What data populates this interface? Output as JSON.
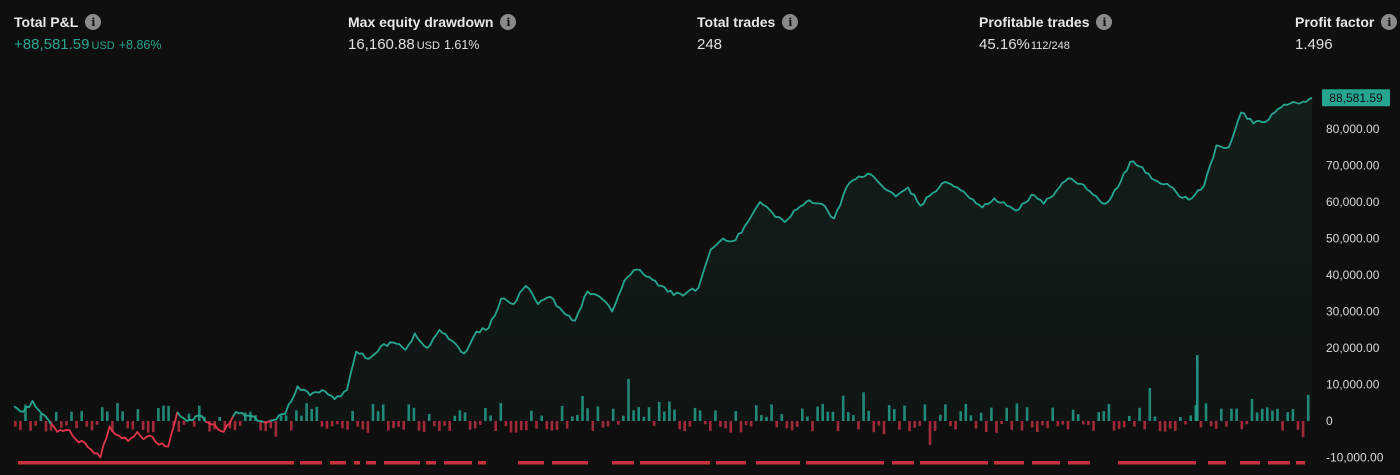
{
  "stats": {
    "total_pnl": {
      "label": "Total P&L",
      "value": "+88,581.59",
      "unit": "USD",
      "percent": "+8.86%"
    },
    "max_drawdown": {
      "label": "Max equity drawdown",
      "value": "16,160.88",
      "unit": "USD",
      "percent": "1.61%"
    },
    "total_trades": {
      "label": "Total trades",
      "value": "248"
    },
    "profitable_trades": {
      "label": "Profitable trades",
      "value": "45.16%",
      "ratio": "112/248"
    },
    "profit_factor": {
      "label": "Profit factor",
      "value": "1.496"
    }
  },
  "colors": {
    "positive": "#26a690",
    "negative": "#e0364c",
    "background": "#0f0f0f",
    "label_badge": "#26a690"
  },
  "chart_data": {
    "type": "line",
    "series_label": "88,581.59",
    "ylim": [
      -10000,
      90000
    ],
    "y_ticks": [
      "80,000.00",
      "70,000.00",
      "60,000.00",
      "50,000.00",
      "40,000.00",
      "30,000.00",
      "20,000.00",
      "10,000.00",
      "0",
      "-10,000.00"
    ],
    "y_tick_values": [
      80000,
      70000,
      60000,
      50000,
      40000,
      30000,
      20000,
      10000,
      0,
      -10000
    ],
    "equity_keypoints": [
      [
        0,
        4000
      ],
      [
        3,
        2500
      ],
      [
        6,
        5500
      ],
      [
        10,
        1500
      ],
      [
        14,
        -3000
      ],
      [
        18,
        -2500
      ],
      [
        20,
        -5000
      ],
      [
        23,
        -6000
      ],
      [
        28,
        -10000
      ],
      [
        31,
        -1500
      ],
      [
        34,
        -4000
      ],
      [
        37,
        -5500
      ],
      [
        40,
        -3000
      ],
      [
        42,
        -5000
      ],
      [
        44,
        -4000
      ],
      [
        47,
        -6500
      ],
      [
        50,
        -7000
      ],
      [
        53,
        2500
      ],
      [
        56,
        0
      ],
      [
        60,
        1500
      ],
      [
        63,
        -500
      ],
      [
        68,
        -3000
      ],
      [
        72,
        2500
      ],
      [
        76,
        1500
      ],
      [
        80,
        0
      ],
      [
        84,
        200
      ],
      [
        88,
        2000
      ],
      [
        92,
        9500
      ],
      [
        96,
        7000
      ],
      [
        100,
        8500
      ],
      [
        104,
        6000
      ],
      [
        108,
        8500
      ],
      [
        111,
        19000
      ],
      [
        115,
        17000
      ],
      [
        119,
        20500
      ],
      [
        123,
        21500
      ],
      [
        127,
        19500
      ],
      [
        130,
        24000
      ],
      [
        134,
        20000
      ],
      [
        138,
        25000
      ],
      [
        142,
        22000
      ],
      [
        146,
        18500
      ],
      [
        150,
        24500
      ],
      [
        154,
        25500
      ],
      [
        158,
        33500
      ],
      [
        162,
        32000
      ],
      [
        166,
        37000
      ],
      [
        170,
        32000
      ],
      [
        174,
        34000
      ],
      [
        178,
        30000
      ],
      [
        182,
        27500
      ],
      [
        186,
        35500
      ],
      [
        190,
        34000
      ],
      [
        194,
        30000
      ],
      [
        198,
        38500
      ],
      [
        202,
        41500
      ],
      [
        206,
        39500
      ],
      [
        210,
        37000
      ],
      [
        214,
        34500
      ],
      [
        218,
        35000
      ],
      [
        222,
        36500
      ],
      [
        226,
        47000
      ],
      [
        230,
        50000
      ],
      [
        234,
        49500
      ],
      [
        238,
        54500
      ],
      [
        242,
        60000
      ],
      [
        246,
        57000
      ],
      [
        250,
        54500
      ],
      [
        254,
        58000
      ],
      [
        258,
        60500
      ],
      [
        262,
        59500
      ],
      [
        266,
        55500
      ],
      [
        270,
        64000
      ],
      [
        274,
        67000
      ],
      [
        278,
        67500
      ],
      [
        282,
        64000
      ],
      [
        286,
        61500
      ],
      [
        290,
        64000
      ],
      [
        294,
        59000
      ],
      [
        298,
        62500
      ],
      [
        302,
        65500
      ],
      [
        306,
        64000
      ],
      [
        310,
        61000
      ],
      [
        314,
        58500
      ],
      [
        318,
        61000
      ],
      [
        322,
        59000
      ],
      [
        326,
        58000
      ],
      [
        330,
        62000
      ],
      [
        334,
        59500
      ],
      [
        338,
        63000
      ],
      [
        342,
        66500
      ],
      [
        346,
        65000
      ],
      [
        350,
        62000
      ],
      [
        354,
        59500
      ],
      [
        358,
        64000
      ],
      [
        362,
        71000
      ],
      [
        366,
        69500
      ],
      [
        370,
        66000
      ],
      [
        374,
        65000
      ],
      [
        378,
        61500
      ],
      [
        382,
        61000
      ],
      [
        386,
        64500
      ],
      [
        390,
        75500
      ],
      [
        394,
        75000
      ],
      [
        398,
        84500
      ],
      [
        402,
        81500
      ],
      [
        406,
        82000
      ],
      [
        410,
        85500
      ],
      [
        414,
        87000
      ],
      [
        418,
        87500
      ],
      [
        421,
        88581.59
      ]
    ],
    "volume_bars": {
      "pos_color": "#26a690",
      "neg_color": "#e0364c"
    }
  }
}
